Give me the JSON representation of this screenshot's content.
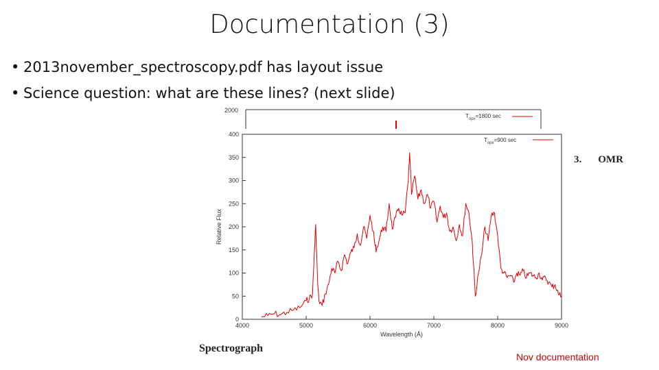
{
  "slide": {
    "title": "Documentation (3)",
    "bullets": [
      "2013november_spectroscopy.pdf has layout issue",
      "Science question: what are these lines? (next slide)"
    ],
    "bullet_glyph": "•",
    "footer": "Nov documentation",
    "caption_spectrograph": "Spectrograph",
    "side_label_number": "3.",
    "side_label_text": "OMR"
  },
  "colors": {
    "series": "#dd0000",
    "footer": "#cc0000",
    "text": "#111111"
  },
  "chart_data": [
    {
      "type": "line",
      "note_visible": "background plot, mostly hidden",
      "ytick_top": "2000",
      "legend": "T_opx=1800 sec",
      "legend_main": "T",
      "legend_sub": "opx",
      "legend_rest": "=1800 sec"
    },
    {
      "type": "line",
      "xlabel": "Wavelength (Å)",
      "ylabel": "Relative Flux",
      "xlim": [
        4000,
        9000
      ],
      "ylim": [
        0,
        400
      ],
      "xticks": [
        "4000",
        "5000",
        "6000",
        "7000",
        "8000",
        "9000"
      ],
      "yticks": [
        "0",
        "50",
        "100",
        "150",
        "200",
        "250",
        "300",
        "350",
        "400"
      ],
      "legend_main": "T",
      "legend_sub": "opx",
      "legend_rest": "=900 sec",
      "grid": false,
      "series": [
        {
          "x": [
            4300,
            4400,
            4500,
            4600,
            4700,
            4800,
            4900,
            5000,
            5050,
            5100,
            5130,
            5150,
            5180,
            5200,
            5250,
            5300,
            5350,
            5400,
            5450,
            5500,
            5550,
            5600,
            5650,
            5700,
            5750,
            5800,
            5850,
            5900,
            5950,
            6000,
            6050,
            6080,
            6100,
            6150,
            6200,
            6250,
            6300,
            6350,
            6400,
            6450,
            6500,
            6550,
            6600,
            6620,
            6650,
            6700,
            6750,
            6800,
            6850,
            6900,
            6950,
            7000,
            7050,
            7100,
            7150,
            7200,
            7250,
            7300,
            7350,
            7400,
            7450,
            7500,
            7550,
            7600,
            7620,
            7650,
            7700,
            7750,
            7800,
            7850,
            7900,
            7950,
            8000,
            8050,
            8100,
            8150,
            8200,
            8250,
            8300,
            8350,
            8400,
            8450,
            8500,
            8550,
            8600,
            8650,
            8700,
            8750,
            8800,
            8850,
            8900,
            8950,
            9000
          ],
          "y": [
            5,
            8,
            12,
            10,
            15,
            20,
            25,
            40,
            45,
            55,
            150,
            205,
            80,
            40,
            30,
            55,
            75,
            110,
            100,
            125,
            105,
            140,
            120,
            145,
            155,
            185,
            160,
            200,
            175,
            225,
            190,
            160,
            150,
            175,
            200,
            190,
            250,
            195,
            220,
            240,
            225,
            230,
            300,
            360,
            270,
            310,
            260,
            280,
            250,
            270,
            240,
            255,
            210,
            245,
            220,
            230,
            190,
            200,
            170,
            205,
            180,
            250,
            230,
            170,
            120,
            50,
            100,
            140,
            200,
            170,
            225,
            230,
            180,
            110,
            100,
            90,
            95,
            80,
            100,
            95,
            105,
            90,
            100,
            95,
            90,
            100,
            85,
            90,
            80,
            70,
            75,
            55,
            50
          ]
        }
      ]
    }
  ]
}
